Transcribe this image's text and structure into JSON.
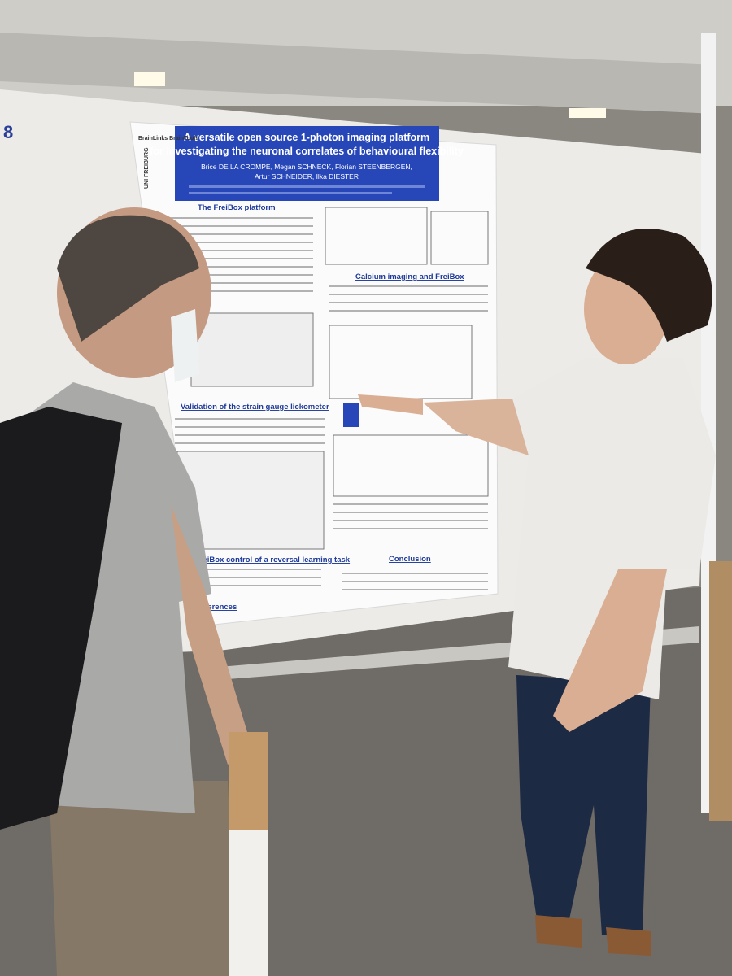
{
  "booth_number": "8",
  "poster": {
    "title_lines": [
      "A versatile open source 1-photon imaging platform",
      "for investigating the neuronal correlates of behavioural flexibility"
    ],
    "author_lines": [
      "Brice DE LA CROMPE, Megan SCHNECK, Florian STEENBERGEN,",
      "Artur SCHNEIDER, Ilka DIESTER"
    ],
    "logos": [
      "BrainLinks BrainTools",
      "UNI FREIBURG"
    ],
    "sections": [
      "The FreiBox platform",
      "Calcium imaging and FreiBox",
      "Validation of the strain gauge lickometer",
      "FreiBox control of a reversal learning task",
      "Conclusion",
      "References"
    ]
  }
}
